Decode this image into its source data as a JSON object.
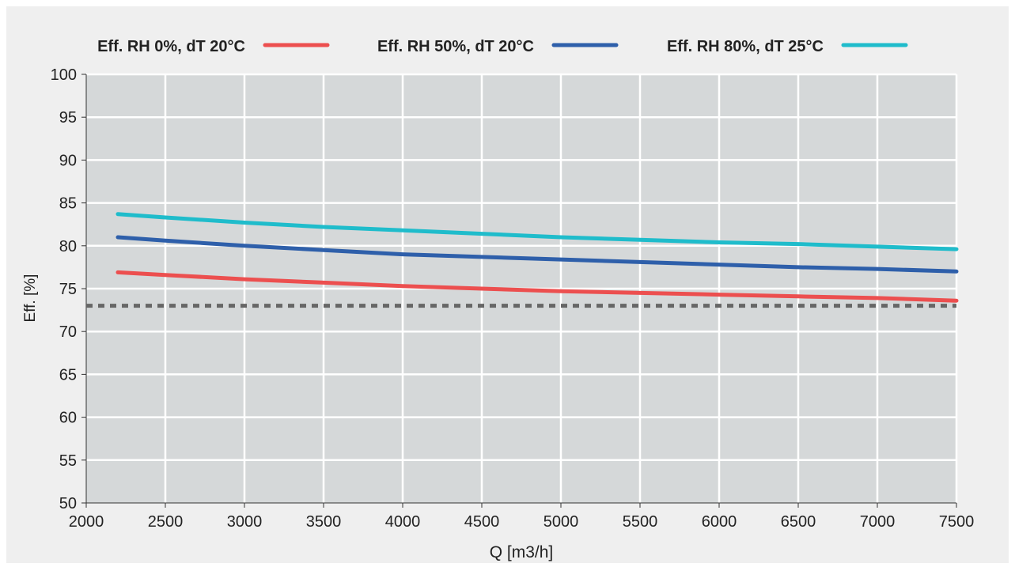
{
  "chart_data": {
    "type": "line",
    "xlabel": "Q [m3/h]",
    "ylabel": "Eff. [%]",
    "xlim": [
      2000,
      7500
    ],
    "ylim": [
      50,
      100
    ],
    "x_ticks": [
      2000,
      2500,
      3000,
      3500,
      4000,
      4500,
      5000,
      5500,
      6000,
      6500,
      7000,
      7500
    ],
    "y_ticks": [
      50,
      55,
      60,
      65,
      70,
      75,
      80,
      85,
      90,
      95,
      100
    ],
    "grid": true,
    "legend_position": "top",
    "background_color": "#d5d8d9",
    "grid_color": "#ffffff",
    "series": [
      {
        "name": "Eff. RH 0%, dT 20°C",
        "color": "#ec4f4f",
        "x": [
          2200,
          2500,
          3000,
          3500,
          4000,
          4500,
          5000,
          5500,
          6000,
          6500,
          7000,
          7500
        ],
        "y": [
          76.9,
          76.6,
          76.1,
          75.7,
          75.3,
          75.0,
          74.7,
          74.5,
          74.3,
          74.1,
          73.9,
          73.6
        ]
      },
      {
        "name": "Eff. RH 50%, dT 20°C",
        "color": "#2e5faa",
        "x": [
          2200,
          2500,
          3000,
          3500,
          4000,
          4500,
          5000,
          5500,
          6000,
          6500,
          7000,
          7500
        ],
        "y": [
          81.0,
          80.6,
          80.0,
          79.5,
          79.0,
          78.7,
          78.4,
          78.1,
          77.8,
          77.5,
          77.3,
          77.0
        ]
      },
      {
        "name": "Eff. RH 80%, dT 25°C",
        "color": "#1fbccb",
        "x": [
          2200,
          2500,
          3000,
          3500,
          4000,
          4500,
          5000,
          5500,
          6000,
          6500,
          7000,
          7500
        ],
        "y": [
          83.7,
          83.3,
          82.7,
          82.2,
          81.8,
          81.4,
          81.0,
          80.7,
          80.4,
          80.2,
          79.9,
          79.6
        ]
      }
    ],
    "reference_line": {
      "y": 73,
      "color": "#666666",
      "style": "dotted"
    }
  }
}
